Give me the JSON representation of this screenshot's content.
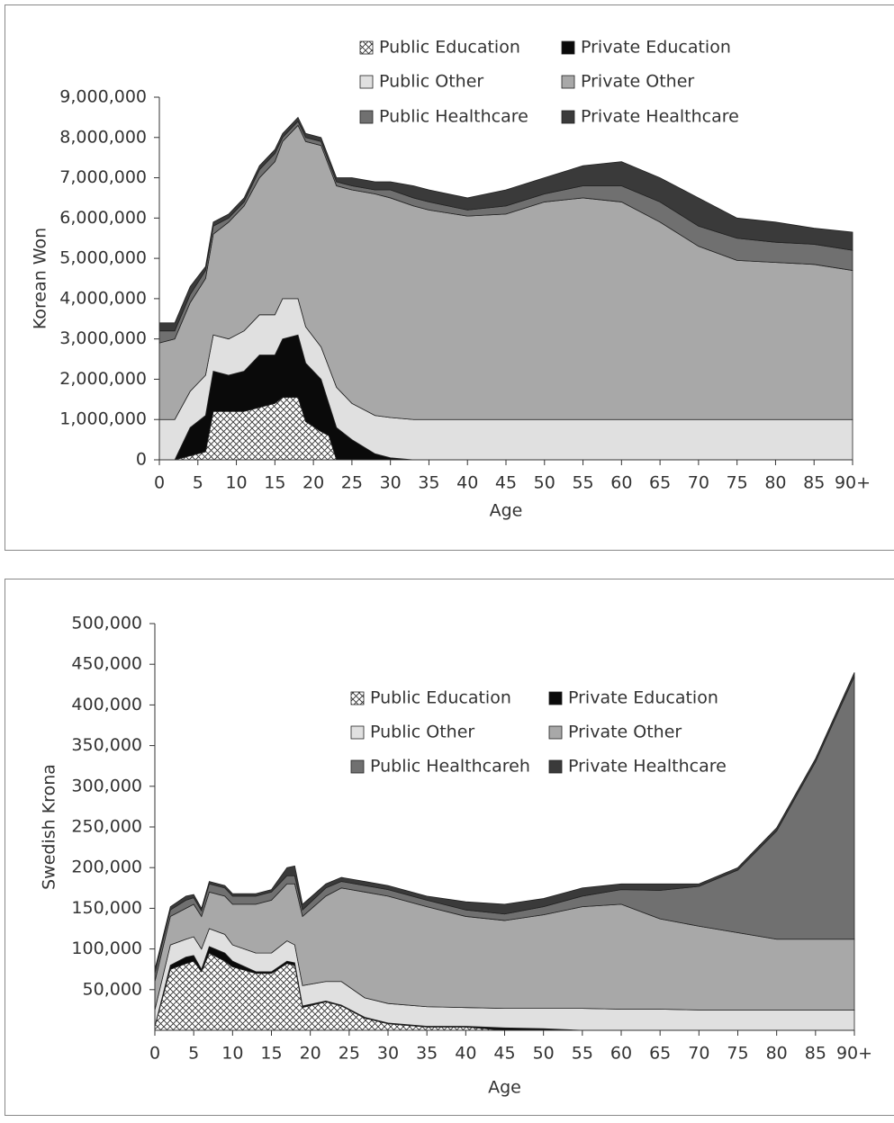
{
  "chart_data": [
    {
      "type": "stacked-area",
      "ylabel": "Korean Won",
      "xlabel": "Age",
      "x": [
        0,
        2,
        4,
        6,
        7,
        9,
        11,
        13,
        15,
        16,
        18,
        19,
        21,
        22,
        23,
        25,
        28,
        30,
        33,
        35,
        40,
        45,
        50,
        55,
        60,
        65,
        70,
        75,
        80,
        85,
        90
      ],
      "xlim": [
        0,
        90
      ],
      "xticks": [
        0,
        5,
        10,
        15,
        20,
        25,
        30,
        35,
        40,
        45,
        50,
        55,
        60,
        65,
        70,
        75,
        80,
        85,
        {
          "value": 90,
          "label": "90+"
        }
      ],
      "ylim": [
        0,
        9000000
      ],
      "yticks": [
        0,
        {
          "value": 1000000,
          "label": "1,000,000"
        },
        {
          "value": 2000000,
          "label": "2,000,000"
        },
        {
          "value": 3000000,
          "label": "3,000,000"
        },
        {
          "value": 4000000,
          "label": "4,000,000"
        },
        {
          "value": 5000000,
          "label": "5,000,000"
        },
        {
          "value": 6000000,
          "label": "6,000,000"
        },
        {
          "value": 7000000,
          "label": "7,000,000"
        },
        {
          "value": 8000000,
          "label": "8,000,000"
        },
        {
          "value": 9000000,
          "label": "9,000,000"
        }
      ],
      "series": [
        {
          "name": "Public Education",
          "color": "#ffffff",
          "hatch": true,
          "values": [
            0,
            0,
            100000,
            200000,
            1200000,
            1200000,
            1200000,
            1300000,
            1400000,
            1550000,
            1550000,
            950000,
            700000,
            600000,
            0,
            0,
            0,
            0,
            0,
            0,
            0,
            0,
            0,
            0,
            0,
            0,
            0,
            0,
            0,
            0,
            0
          ]
        },
        {
          "name": "Private Education",
          "color": "#0a0a0a",
          "values": [
            0,
            0,
            700000,
            900000,
            1000000,
            900000,
            1000000,
            1300000,
            1200000,
            1450000,
            1550000,
            1450000,
            1300000,
            800000,
            800000,
            500000,
            150000,
            50000,
            0,
            0,
            0,
            0,
            0,
            0,
            0,
            0,
            0,
            0,
            0,
            0,
            0
          ]
        },
        {
          "name": "Public Other",
          "color": "#e0e0e0",
          "values": [
            1000000,
            1000000,
            900000,
            1000000,
            900000,
            900000,
            1000000,
            1000000,
            1000000,
            1000000,
            900000,
            900000,
            800000,
            900000,
            1000000,
            900000,
            950000,
            1000000,
            1000000,
            1000000,
            1000000,
            1000000,
            1000000,
            1000000,
            1000000,
            1000000,
            1000000,
            1000000,
            1000000,
            1000000,
            1000000
          ]
        },
        {
          "name": "Private Other",
          "color": "#a8a8a8",
          "values": [
            1900000,
            2000000,
            2200000,
            2400000,
            2500000,
            2900000,
            3100000,
            3400000,
            3800000,
            3900000,
            4300000,
            4600000,
            5000000,
            5000000,
            5000000,
            5300000,
            5500000,
            5450000,
            5300000,
            5200000,
            5050000,
            5100000,
            5400000,
            5500000,
            5400000,
            4900000,
            4300000,
            3950000,
            3900000,
            3850000,
            3700000
          ]
        },
        {
          "name": "Public Healthcare",
          "color": "#707070",
          "values": [
            300000,
            200000,
            200000,
            200000,
            200000,
            100000,
            100000,
            200000,
            200000,
            100000,
            100000,
            100000,
            100000,
            100000,
            100000,
            100000,
            100000,
            200000,
            200000,
            200000,
            150000,
            200000,
            200000,
            300000,
            400000,
            500000,
            500000,
            550000,
            500000,
            500000,
            500000
          ]
        },
        {
          "name": "Private Healthcare",
          "color": "#3a3a3a",
          "values": [
            200000,
            200000,
            200000,
            100000,
            100000,
            100000,
            100000,
            100000,
            100000,
            100000,
            100000,
            100000,
            100000,
            100000,
            100000,
            200000,
            200000,
            200000,
            300000,
            300000,
            300000,
            400000,
            400000,
            500000,
            600000,
            600000,
            700000,
            500000,
            500000,
            400000,
            450000
          ]
        }
      ]
    },
    {
      "type": "stacked-area",
      "ylabel": "Swedish Krona",
      "xlabel": "Age",
      "x": [
        0,
        2,
        4,
        5,
        6,
        7,
        9,
        10,
        13,
        15,
        17,
        18,
        19,
        22,
        24,
        27,
        30,
        35,
        40,
        45,
        50,
        55,
        60,
        65,
        70,
        75,
        80,
        85,
        90
      ],
      "xlim": [
        0,
        90
      ],
      "xticks": [
        0,
        5,
        10,
        15,
        20,
        25,
        30,
        35,
        40,
        45,
        50,
        55,
        60,
        65,
        70,
        75,
        80,
        85,
        {
          "value": 90,
          "label": "90+"
        }
      ],
      "ylim": [
        0,
        500000
      ],
      "yticks": [
        {
          "value": 50000,
          "label": "50,000"
        },
        {
          "value": 100000,
          "label": "100,000"
        },
        {
          "value": 150000,
          "label": "150,000"
        },
        {
          "value": 200000,
          "label": "200,000"
        },
        {
          "value": 250000,
          "label": "250,000"
        },
        {
          "value": 300000,
          "label": "300,000"
        },
        {
          "value": 350000,
          "label": "350,000"
        },
        {
          "value": 400000,
          "label": "400,000"
        },
        {
          "value": 450000,
          "label": "450,000"
        },
        {
          "value": 500000,
          "label": "500,000"
        }
      ],
      "series": [
        {
          "name": "Public Education",
          "color": "#ffffff",
          "hatch": true,
          "values": [
            5000,
            75000,
            82000,
            85000,
            72000,
            95000,
            85000,
            78000,
            70000,
            70000,
            82000,
            80000,
            28000,
            35000,
            30000,
            15000,
            8000,
            4000,
            4000,
            0,
            0,
            0,
            0,
            0,
            0,
            0,
            0,
            0,
            0
          ]
        },
        {
          "name": "Private Education",
          "color": "#0a0a0a",
          "values": [
            0,
            5000,
            8000,
            7000,
            3000,
            8000,
            10000,
            7000,
            2000,
            2000,
            3000,
            3000,
            2000,
            1000,
            1000,
            1000,
            1000,
            1000,
            1000,
            3000,
            2000,
            0,
            0,
            0,
            0,
            0,
            0,
            0,
            0
          ]
        },
        {
          "name": "Public Other",
          "color": "#e0e0e0",
          "values": [
            20000,
            25000,
            22000,
            23000,
            25000,
            22000,
            23000,
            20000,
            23000,
            23000,
            25000,
            22000,
            25000,
            24000,
            29000,
            24000,
            24000,
            24000,
            23000,
            24000,
            25000,
            27000,
            26000,
            26000,
            25000,
            25000,
            25000,
            25000,
            25000
          ]
        },
        {
          "name": "Private Other",
          "color": "#a8a8a8",
          "values": [
            35000,
            35000,
            38000,
            40000,
            40000,
            45000,
            47000,
            50000,
            60000,
            65000,
            70000,
            75000,
            85000,
            105000,
            115000,
            130000,
            132000,
            123000,
            112000,
            108000,
            115000,
            125000,
            129000,
            111000,
            103000,
            95000,
            87000,
            87000,
            87000
          ]
        },
        {
          "name": "Public Healthcareh",
          "color": "#707070",
          "values": [
            10000,
            8000,
            10000,
            8000,
            7000,
            10000,
            10000,
            10000,
            10000,
            10000,
            10000,
            10000,
            8000,
            10000,
            8000,
            8000,
            8000,
            8000,
            8000,
            8000,
            10000,
            13000,
            18000,
            35000,
            49000,
            77000,
            133000,
            218000,
            323000
          ]
        },
        {
          "name": "Private Healthcare",
          "color": "#3a3a3a",
          "values": [
            5000,
            4000,
            5000,
            4000,
            3000,
            3000,
            3000,
            3000,
            3000,
            3000,
            10000,
            12000,
            7000,
            5000,
            5000,
            5000,
            5000,
            5000,
            10000,
            12000,
            10000,
            10000,
            7000,
            8000,
            3000,
            3000,
            4000,
            4000,
            5000
          ]
        }
      ]
    }
  ]
}
